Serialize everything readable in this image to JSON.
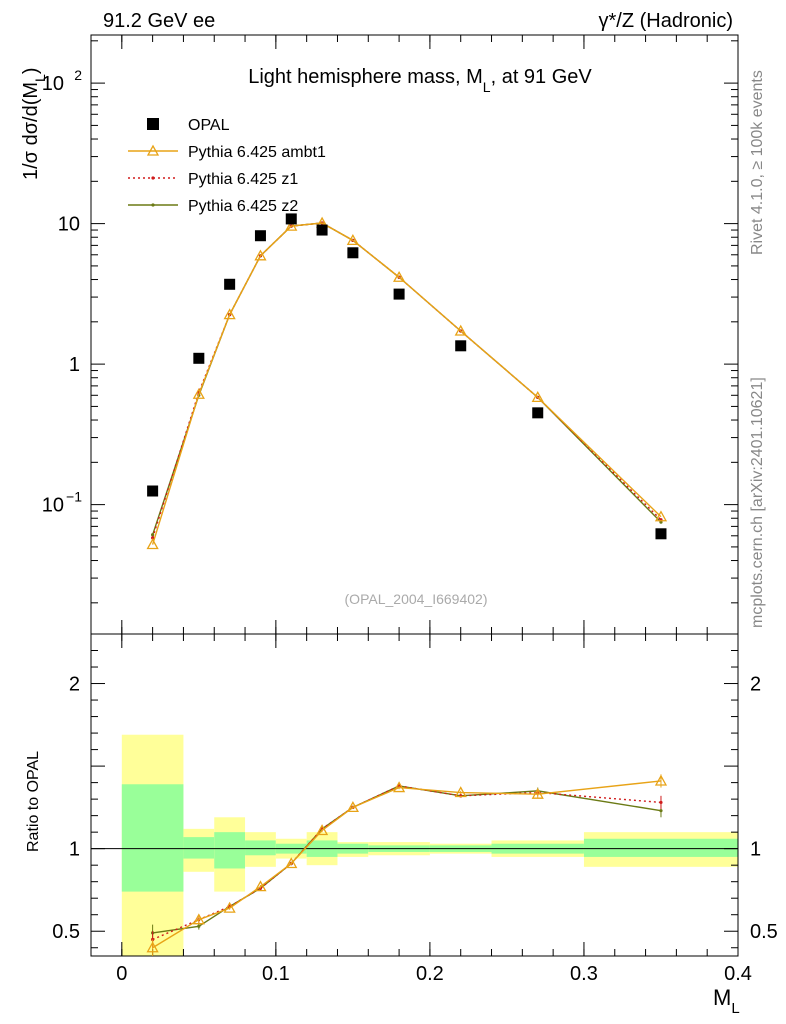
{
  "chart_data": {
    "type": "scatter",
    "header_left": "91.2 GeV ee",
    "header_right": "γ*/Z (Hadronic)",
    "title": "Light hemisphere mass, M",
    "title_sub": "L",
    "title_tail": ", at 91 GeV",
    "analysis_id": "(OPAL_2004_I669402)",
    "side_label_top": "Rivet 4.1.0, ≥ 100k events",
    "side_label_bottom": "mcplots.cern.ch [arXiv:2401.10621]",
    "ylabel_main": "1/σ  dσ/d(M",
    "ylabel_main_sub": "L",
    "ylabel_main_tail": ")",
    "ylabel_ratio": "Ratio to OPAL",
    "xlabel": "M",
    "xlabel_sub": "L",
    "x_range": [
      -0.02,
      0.4
    ],
    "y_range_main_log": [
      0.012,
      220
    ],
    "y_range_ratio": [
      0.35,
      2.3
    ],
    "x_ticks": [
      {
        "value": 0,
        "label": "0"
      },
      {
        "value": 0.1,
        "label": "0.1"
      },
      {
        "value": 0.2,
        "label": "0.2"
      },
      {
        "value": 0.3,
        "label": "0.3"
      },
      {
        "value": 0.4,
        "label": "0.4"
      }
    ],
    "y_ticks_main": [
      {
        "value": 100,
        "base": "10",
        "exp": "2"
      },
      {
        "value": 10,
        "base": "10",
        "exp": ""
      },
      {
        "value": 1,
        "base": "1",
        "exp": ""
      },
      {
        "value": 0.1,
        "base": "10",
        "exp": "−1"
      }
    ],
    "y_ticks_ratio": [
      {
        "value": 2,
        "label": "2"
      },
      {
        "value": 1,
        "label": "1"
      },
      {
        "value": 0.5,
        "label": "0.5"
      }
    ],
    "bin_edges": [
      0,
      0.04,
      0.06,
      0.08,
      0.1,
      0.12,
      0.14,
      0.16,
      0.2,
      0.24,
      0.3,
      0.4
    ],
    "x": [
      0.02,
      0.05,
      0.07,
      0.09,
      0.11,
      0.13,
      0.15,
      0.18,
      0.22,
      0.27,
      0.35
    ],
    "legend": [
      {
        "key": "opal",
        "label": "OPAL",
        "color": "#000000"
      },
      {
        "key": "ambt1",
        "label": "Pythia 6.425 ambt1",
        "color": "#e8a317"
      },
      {
        "key": "z1",
        "label": "Pythia 6.425 z1",
        "color": "#d01c1c"
      },
      {
        "key": "z2",
        "label": "Pythia 6.425 z2",
        "color": "#6b7a15"
      }
    ],
    "series": [
      {
        "name": "OPAL",
        "values": [
          0.125,
          1.1,
          3.7,
          8.2,
          10.8,
          9.0,
          6.2,
          3.15,
          1.35,
          0.45,
          0.062
        ]
      },
      {
        "name": "Pythia 6.425 ambt1",
        "values": [
          0.052,
          0.61,
          2.25,
          5.9,
          9.6,
          10.1,
          7.6,
          4.15,
          1.72,
          0.58,
          0.082
        ]
      },
      {
        "name": "Pythia 6.425 z1",
        "values": [
          0.058,
          0.63,
          2.25,
          5.9,
          9.6,
          10.1,
          7.6,
          4.15,
          1.72,
          0.58,
          0.078
        ]
      },
      {
        "name": "Pythia 6.425 z2",
        "values": [
          0.061,
          0.6,
          2.25,
          5.9,
          9.6,
          10.1,
          7.6,
          4.15,
          1.72,
          0.58,
          0.075
        ]
      }
    ],
    "ratio_series": [
      {
        "name": "Pythia 6.425 ambt1",
        "values": [
          0.4,
          0.57,
          0.64,
          0.77,
          0.91,
          1.11,
          1.25,
          1.37,
          1.34,
          1.33,
          1.41
        ]
      },
      {
        "name": "Pythia 6.425 z1",
        "values": [
          0.45,
          0.57,
          0.65,
          0.76,
          0.91,
          1.12,
          1.25,
          1.38,
          1.32,
          1.34,
          1.28
        ]
      },
      {
        "name": "Pythia 6.425 z2",
        "values": [
          0.49,
          0.53,
          0.65,
          0.76,
          0.91,
          1.12,
          1.25,
          1.38,
          1.32,
          1.35,
          1.23
        ]
      }
    ],
    "ratio_errors": [
      0.05,
      0.02,
      0.01,
      0.01,
      0.01,
      0.01,
      0.01,
      0.01,
      0.01,
      0.02,
      0.04
    ],
    "band_stat": [
      [
        0.74,
        1.39
      ],
      [
        0.94,
        1.07
      ],
      [
        0.88,
        1.1
      ],
      [
        0.96,
        1.05
      ],
      [
        0.97,
        1.03
      ],
      [
        0.95,
        1.05
      ],
      [
        0.97,
        1.03
      ],
      [
        0.98,
        1.02
      ],
      [
        0.98,
        1.02
      ],
      [
        0.97,
        1.03
      ],
      [
        0.95,
        1.06
      ]
    ],
    "band_total": [
      [
        0,
        1.69
      ],
      [
        0.86,
        1.12
      ],
      [
        0.74,
        1.19
      ],
      [
        0.89,
        1.1
      ],
      [
        0.94,
        1.06
      ],
      [
        0.9,
        1.1
      ],
      [
        0.95,
        1.04
      ],
      [
        0.96,
        1.04
      ],
      [
        0.97,
        1.03
      ],
      [
        0.95,
        1.05
      ],
      [
        0.89,
        1.1
      ]
    ]
  }
}
